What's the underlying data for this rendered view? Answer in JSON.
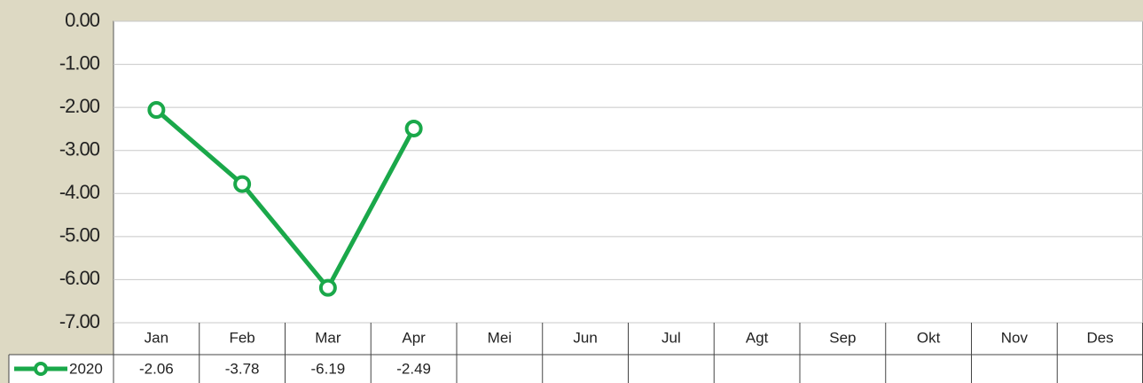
{
  "chart_data": {
    "type": "line",
    "categories": [
      "Jan",
      "Feb",
      "Mar",
      "Apr",
      "Mei",
      "Jun",
      "Jul",
      "Agt",
      "Sep",
      "Okt",
      "Nov",
      "Des"
    ],
    "series": [
      {
        "name": "2020",
        "color": "#1aa84a",
        "values": [
          -2.06,
          -3.78,
          -6.19,
          -2.49,
          null,
          null,
          null,
          null,
          null,
          null,
          null,
          null
        ]
      }
    ],
    "ylim": [
      -7,
      0
    ],
    "yticks": [
      {
        "value": 0,
        "label": "0.00"
      },
      {
        "value": -1,
        "label": "-1.00"
      },
      {
        "value": -2,
        "label": "-2.00"
      },
      {
        "value": -3,
        "label": "-3.00"
      },
      {
        "value": -4,
        "label": "-4.00"
      },
      {
        "value": -5,
        "label": "-5.00"
      },
      {
        "value": -6,
        "label": "-6.00"
      },
      {
        "value": -7,
        "label": "-7.00"
      }
    ],
    "grid": true
  }
}
